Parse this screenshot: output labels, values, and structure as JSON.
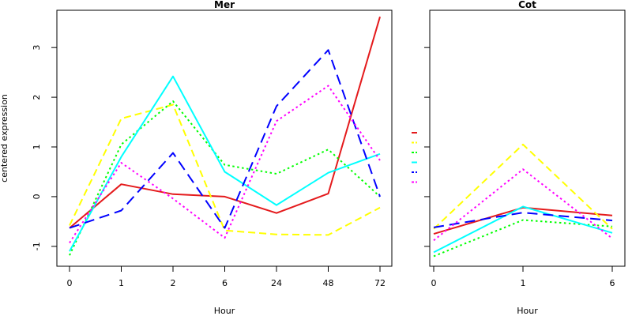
{
  "chart_data": [
    {
      "type": "line",
      "title": "Mer",
      "xlabel": "Hour",
      "ylabel": "centered expression",
      "categories": [
        "0",
        "1",
        "2",
        "6",
        "24",
        "48",
        "72"
      ],
      "ylim": [
        -1.4,
        3.75
      ],
      "yticks": [
        -1,
        0,
        1,
        2,
        3
      ],
      "series": [
        {
          "color": "#e41a1c",
          "dash": "solid",
          "values": [
            -0.63,
            0.25,
            0.05,
            0.0,
            -0.33,
            0.06,
            3.62
          ]
        },
        {
          "color": "#ffff00",
          "dash": "dashed",
          "values": [
            -0.58,
            1.57,
            1.85,
            -0.68,
            -0.76,
            -0.77,
            -0.22
          ]
        },
        {
          "color": "#00ff00",
          "dash": "dotted",
          "values": [
            -1.18,
            1.05,
            1.92,
            0.64,
            0.46,
            0.95,
            0.0
          ]
        },
        {
          "color": "#00ffff",
          "dash": "solid",
          "values": [
            -1.1,
            0.8,
            2.42,
            0.5,
            -0.17,
            0.48,
            0.86
          ]
        },
        {
          "color": "#0000ff",
          "dash": "longdash",
          "values": [
            -0.63,
            -0.28,
            0.88,
            -0.63,
            1.82,
            2.95,
            0.0
          ]
        },
        {
          "color": "#ff00ff",
          "dash": "dotted",
          "values": [
            -0.93,
            0.68,
            -0.04,
            -0.83,
            1.52,
            2.23,
            0.73
          ]
        }
      ]
    },
    {
      "type": "line",
      "title": "Cot",
      "xlabel": "Hour",
      "ylabel": "",
      "categories": [
        "0",
        "1",
        "6"
      ],
      "ylim": [
        -1.4,
        3.75
      ],
      "yticks": [
        -1,
        0,
        1,
        2,
        3
      ],
      "series": [
        {
          "color": "#e41a1c",
          "dash": "solid",
          "values": [
            -0.75,
            -0.22,
            -0.38
          ]
        },
        {
          "color": "#ffff00",
          "dash": "dashed",
          "values": [
            -0.65,
            1.05,
            -0.65
          ]
        },
        {
          "color": "#00ff00",
          "dash": "dotted",
          "values": [
            -1.2,
            -0.47,
            -0.6
          ]
        },
        {
          "color": "#00ffff",
          "dash": "solid",
          "values": [
            -1.12,
            -0.2,
            -0.73
          ]
        },
        {
          "color": "#0000ff",
          "dash": "longdash",
          "values": [
            -0.62,
            -0.32,
            -0.48
          ]
        },
        {
          "color": "#ff00ff",
          "dash": "dotted",
          "values": [
            -0.88,
            0.55,
            -0.84
          ]
        }
      ]
    }
  ]
}
